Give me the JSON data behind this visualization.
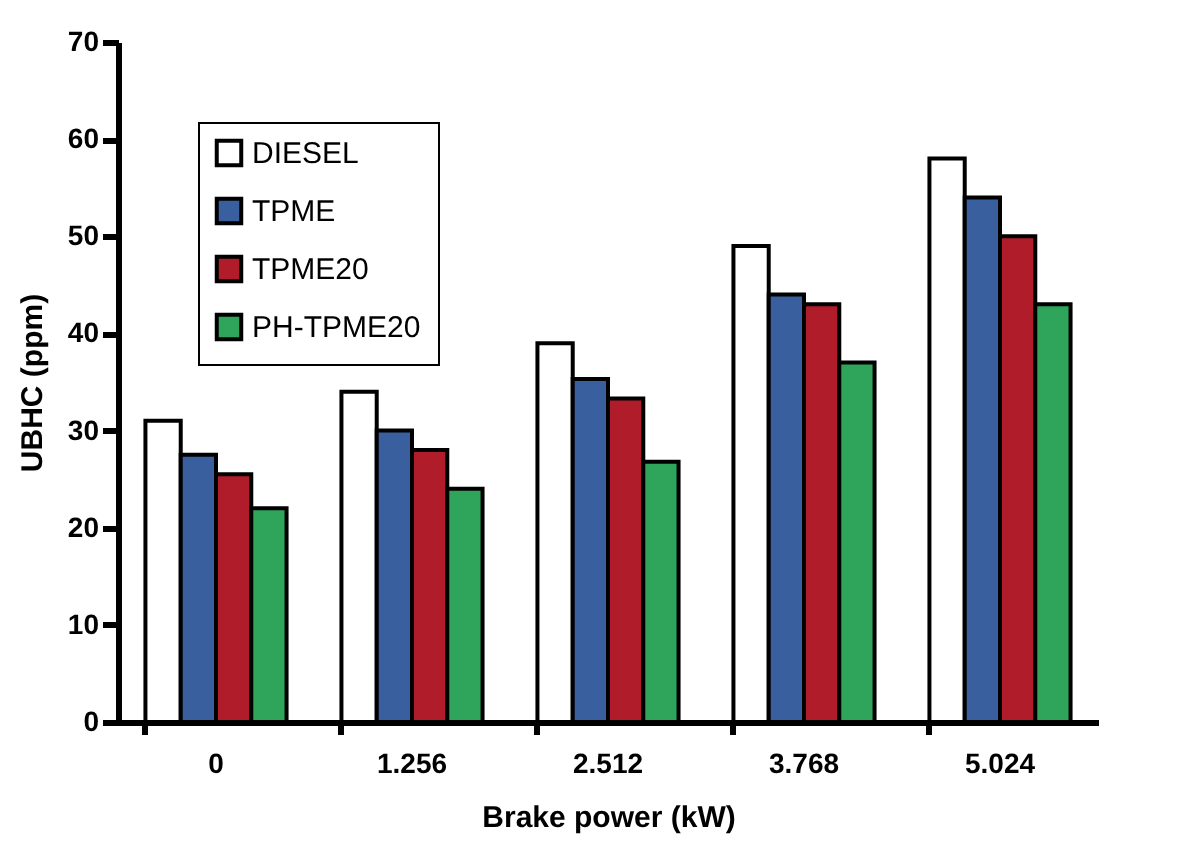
{
  "chart_data": {
    "type": "bar",
    "xlabel": "Brake power (kW)",
    "ylabel": "UBHC (ppm)",
    "categories": [
      "0",
      "1.256",
      "2.512",
      "3.768",
      "5.024"
    ],
    "series": [
      {
        "name": "DIESEL",
        "color": "#ffffff",
        "values": [
          31,
          34,
          39,
          49,
          58
        ]
      },
      {
        "name": "TPME",
        "color": "#3a5f9e",
        "values": [
          27.5,
          30,
          35.3,
          44,
          54
        ]
      },
      {
        "name": "TPME20",
        "color": "#b01c2a",
        "values": [
          25.5,
          28,
          33.3,
          43,
          50
        ]
      },
      {
        "name": "PH-TPME20",
        "color": "#2ea55a",
        "values": [
          22,
          24,
          26.8,
          37,
          43
        ]
      }
    ],
    "ylim": [
      0,
      70
    ],
    "yticks": [
      0,
      10,
      20,
      30,
      40,
      50,
      60,
      70
    ],
    "grid": false,
    "legend": "top left"
  }
}
